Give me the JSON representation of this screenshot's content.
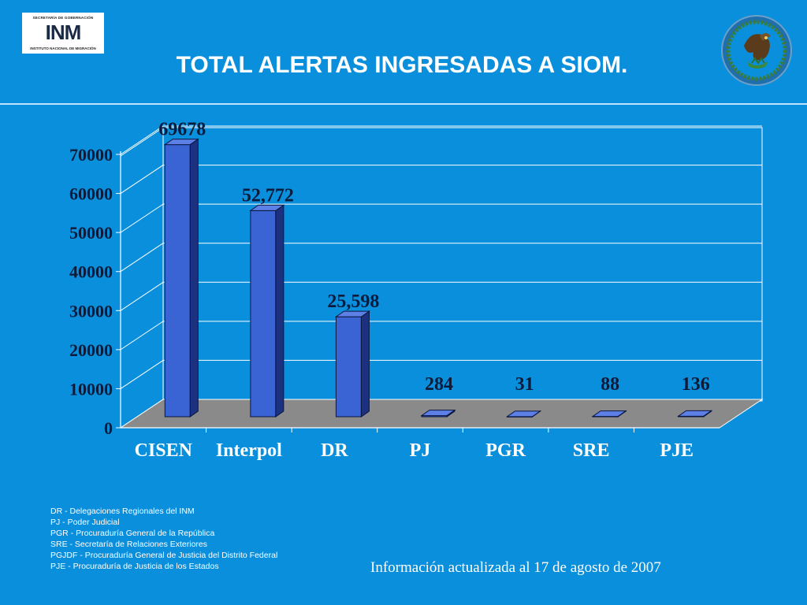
{
  "header": {
    "logo_top": "SECRETARÍA DE GOBERNACIÓN",
    "logo_word": "INM",
    "logo_bottom": "INSTITUTO NACIONAL DE MIGRACIÓN",
    "title": "TOTAL ALERTAS INGRESADAS A SIOM."
  },
  "colors": {
    "background": "#0a8fdc",
    "bar_front": "#3a63d4",
    "bar_side": "#1c3180",
    "bar_top": "#5c80e6",
    "floor": "#8a8a8a",
    "plot_back": "#0a8fdc",
    "text_dark": "#0d1b3a",
    "text_light": "#ffffff"
  },
  "chart_data": {
    "type": "bar",
    "categories": [
      "CISEN",
      "Interpol",
      "DR",
      "PJ",
      "PGR",
      "SRE",
      "PJE"
    ],
    "values": [
      69678,
      52772,
      25598,
      284,
      31,
      88,
      136
    ],
    "data_labels": [
      "69678",
      "52,772",
      "25,598",
      "284",
      "31",
      "88",
      "136"
    ],
    "y_ticks": [
      0,
      10000,
      20000,
      30000,
      40000,
      50000,
      60000,
      70000
    ],
    "ylim": [
      0,
      70000
    ],
    "grid": true,
    "style": "3d"
  },
  "notes": [
    "DR - Delegaciones Regionales del INM",
    "PJ - Poder Judicial",
    "PGR - Procuraduría General de la República",
    "SRE - Secretaría de Relaciones Exteriores",
    "PGJDF - Procuraduría General de Justicia del Distrito Federal",
    "PJE - Procuraduría de Justicia de los Estados"
  ],
  "footer": {
    "text": "Información actualizada al 17 de agosto de 2007"
  }
}
